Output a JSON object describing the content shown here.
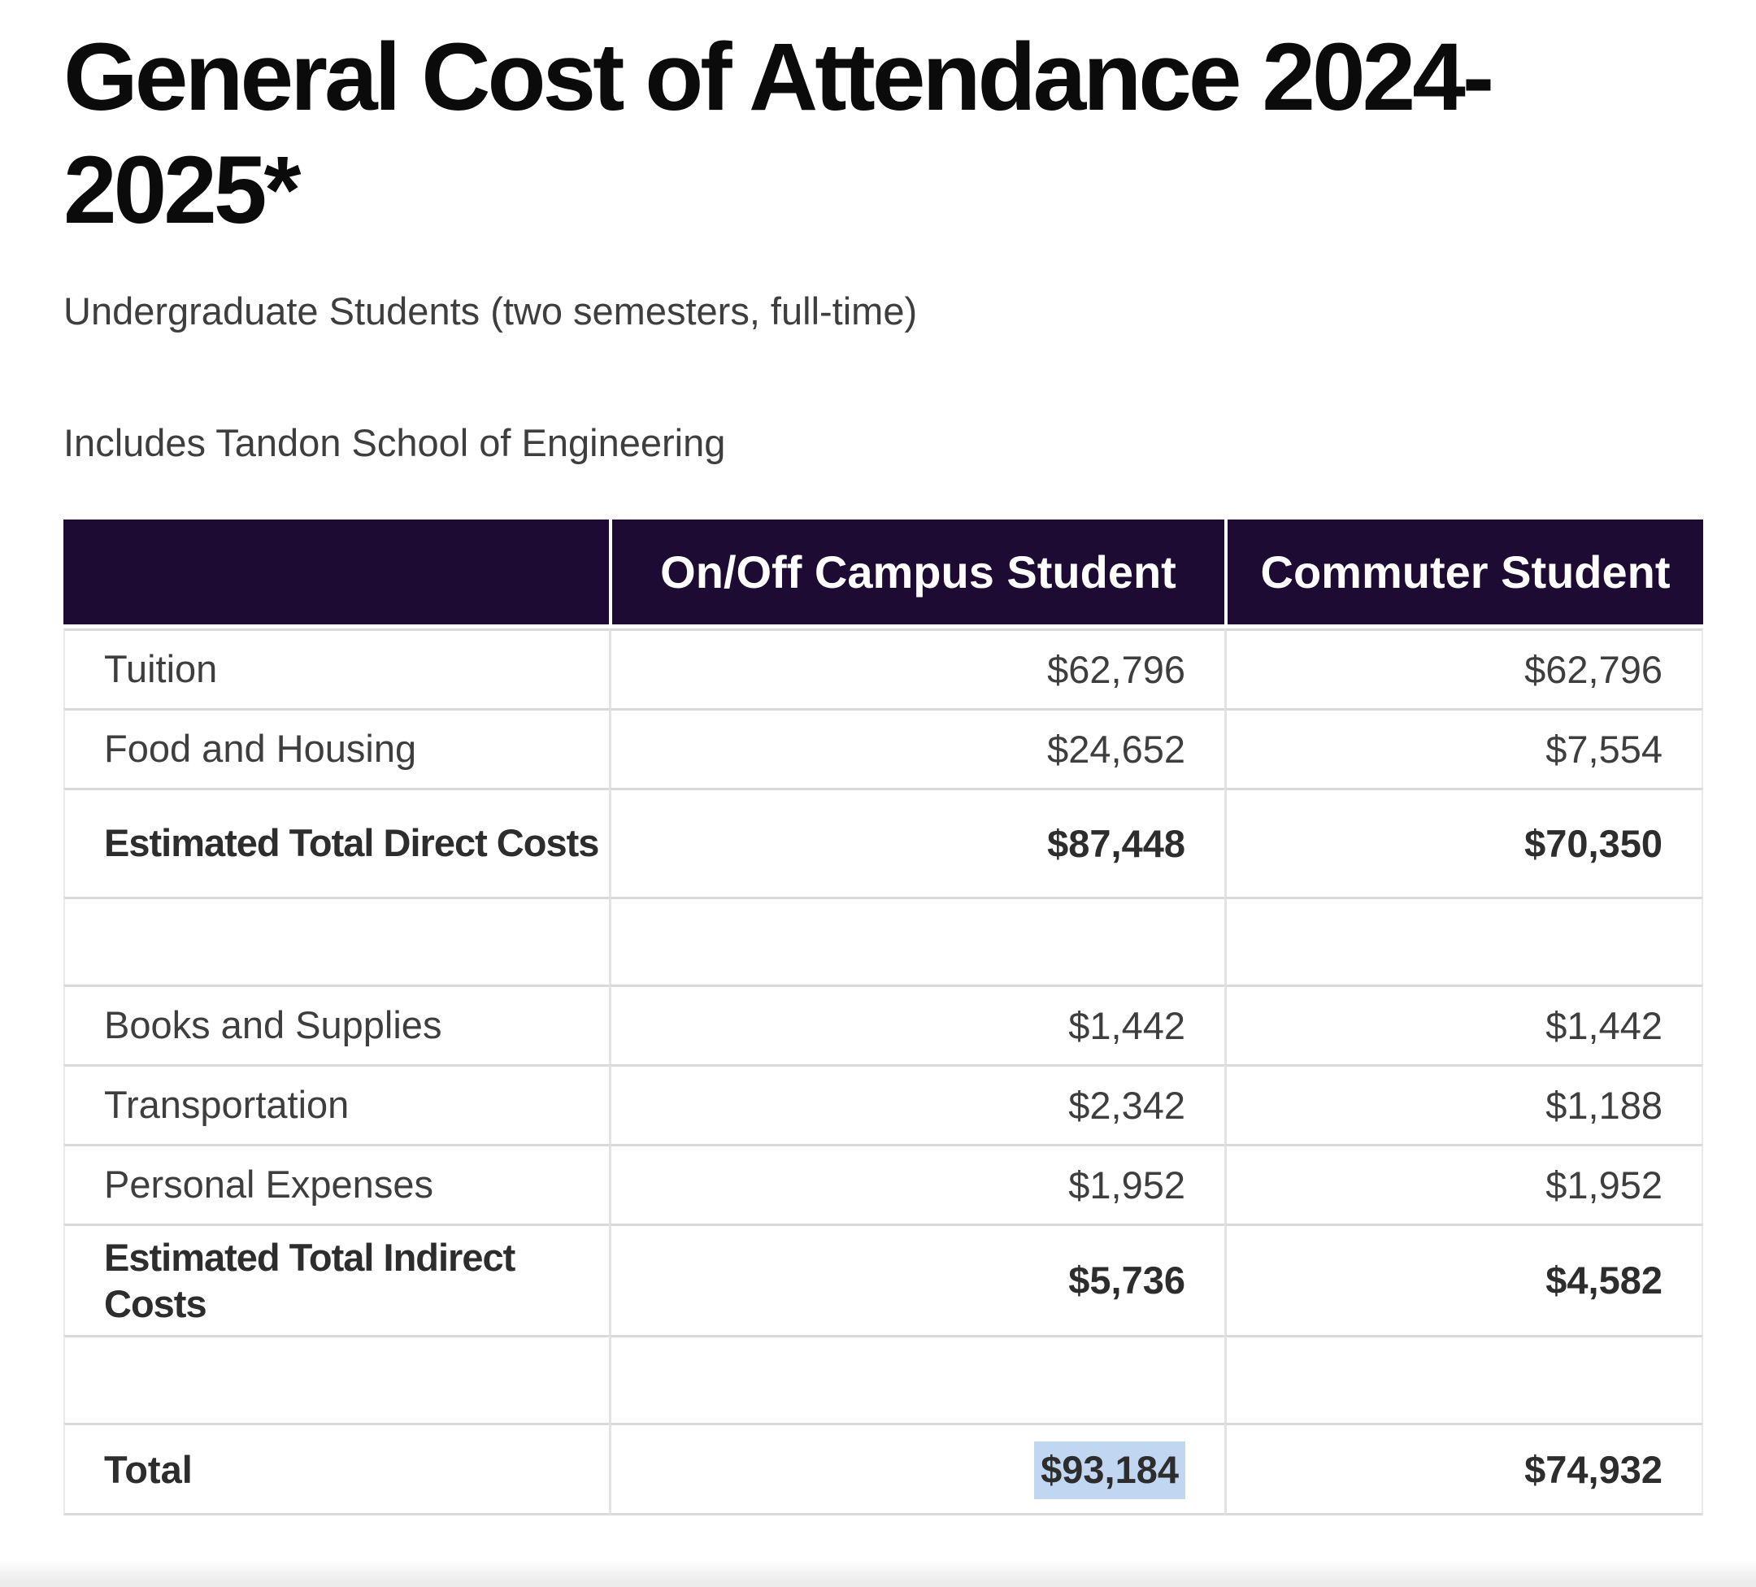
{
  "page": {
    "title": "General Cost of Attendance 2024-2025*",
    "subtitle": "Undergraduate Students (two semesters, full-time)",
    "note": "Includes Tandon School of Engineering"
  },
  "table": {
    "columns": [
      "",
      "On/Off Campus Student",
      "Commuter Student"
    ],
    "rows": [
      {
        "kind": "data",
        "label": "Tuition",
        "oncampus": "$62,796",
        "commuter": "$62,796"
      },
      {
        "kind": "data",
        "label": "Food and Housing",
        "oncampus": "$24,652",
        "commuter": "$7,554"
      },
      {
        "kind": "subtotal",
        "label": "Estimated Total Direct Costs",
        "oncampus": "$87,448",
        "commuter": "$70,350"
      },
      {
        "kind": "spacer",
        "label": "",
        "oncampus": "",
        "commuter": ""
      },
      {
        "kind": "data",
        "label": "Books and Supplies",
        "oncampus": "$1,442",
        "commuter": "$1,442"
      },
      {
        "kind": "data",
        "label": "Transportation",
        "oncampus": "$2,342",
        "commuter": "$1,188"
      },
      {
        "kind": "data",
        "label": "Personal Expenses",
        "oncampus": "$1,952",
        "commuter": "$1,952"
      },
      {
        "kind": "subtotal",
        "label": "Estimated Total Indirect Costs",
        "oncampus": "$5,736",
        "commuter": "$4,582"
      },
      {
        "kind": "spacer",
        "label": "",
        "oncampus": "",
        "commuter": ""
      },
      {
        "kind": "total",
        "label": "Total",
        "oncampus": "$93,184",
        "commuter": "$74,932",
        "highlight_oncampus": true
      }
    ]
  },
  "colors": {
    "header_bg": "#1e0b33",
    "header_text": "#ffffff",
    "title_text": "#0b0b0b",
    "body_text": "#3e3e3e",
    "bold_text": "#2d2d2d",
    "border": "#d9d9d9",
    "selection_highlight": "#c1d6f0",
    "bottom_strip": "#ececec"
  }
}
